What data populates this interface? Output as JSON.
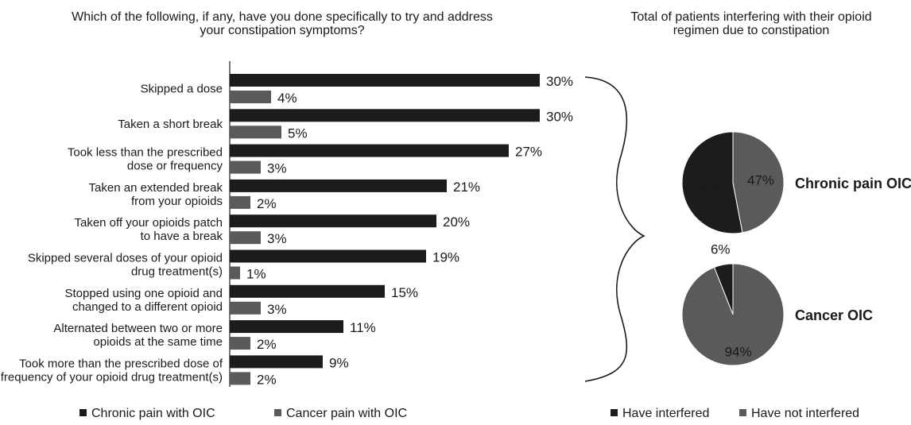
{
  "chart_data": [
    {
      "type": "bar",
      "orientation": "horizontal",
      "title": "Which of the following, if any, have you done specifically to try and address your constipation symptoms?",
      "categories": [
        "Skipped a dose",
        "Taken a short break",
        "Took less than the prescribed dose or frequency",
        "Taken an extended break from your opioids",
        "Taken off your opioids patch to have a break",
        "Skipped several doses of your opioid drug treatment(s)",
        "Stopped using one opioid and changed to a different opioid",
        "Alternated between two or more opioids at the same time",
        "Took more than the prescribed dose of frequency of your opioid drug treatment(s)"
      ],
      "category_lines": [
        [
          "Skipped a dose"
        ],
        [
          "Taken a short break"
        ],
        [
          "Took less than the prescribed",
          "dose or frequency"
        ],
        [
          "Taken an extended break",
          "from your opioids"
        ],
        [
          "Taken off your opioids patch",
          "to have a break"
        ],
        [
          "Skipped several doses of your opioid",
          "drug treatment(s)"
        ],
        [
          "Stopped using one opioid and",
          "changed to a different opioid"
        ],
        [
          "Alternated between two or more",
          "opioids at the same time"
        ],
        [
          "Took more than the prescribed dose of",
          "frequency of your opioid drug treatment(s)"
        ]
      ],
      "series": [
        {
          "name": "Chronic pain with OIC",
          "color": "#1c1c1c",
          "values": [
            30,
            30,
            27,
            21,
            20,
            19,
            15,
            11,
            9
          ],
          "labels": [
            "30%",
            "30%",
            "27%",
            "21%",
            "20%",
            "19%",
            "15%",
            "11%",
            "9%"
          ]
        },
        {
          "name": "Cancer pain with OIC",
          "color": "#5a5a5a",
          "values": [
            4,
            5,
            3,
            2,
            3,
            1,
            3,
            2,
            2
          ],
          "labels": [
            "4%",
            "5%",
            "3%",
            "2%",
            "3%",
            "1%",
            "3%",
            "2%",
            "2%"
          ]
        }
      ],
      "xlim": [
        0,
        30
      ],
      "grid": false,
      "legend": "bottom"
    },
    {
      "type": "pie",
      "title": "Total of patients interfering with their opioid regimen due to constipation",
      "categories": [
        "Have interfered",
        "Have not interfered"
      ],
      "colors": [
        "#1c1c1c",
        "#5a5a5a"
      ],
      "pies": [
        {
          "name": "Chronic pain OIC",
          "values": [
            53,
            47
          ],
          "labels": [
            "53%",
            "47%"
          ]
        },
        {
          "name": "Cancer OIC",
          "values": [
            6,
            94
          ],
          "labels": [
            "6%",
            "94%"
          ]
        }
      ],
      "legend": "bottom"
    }
  ]
}
